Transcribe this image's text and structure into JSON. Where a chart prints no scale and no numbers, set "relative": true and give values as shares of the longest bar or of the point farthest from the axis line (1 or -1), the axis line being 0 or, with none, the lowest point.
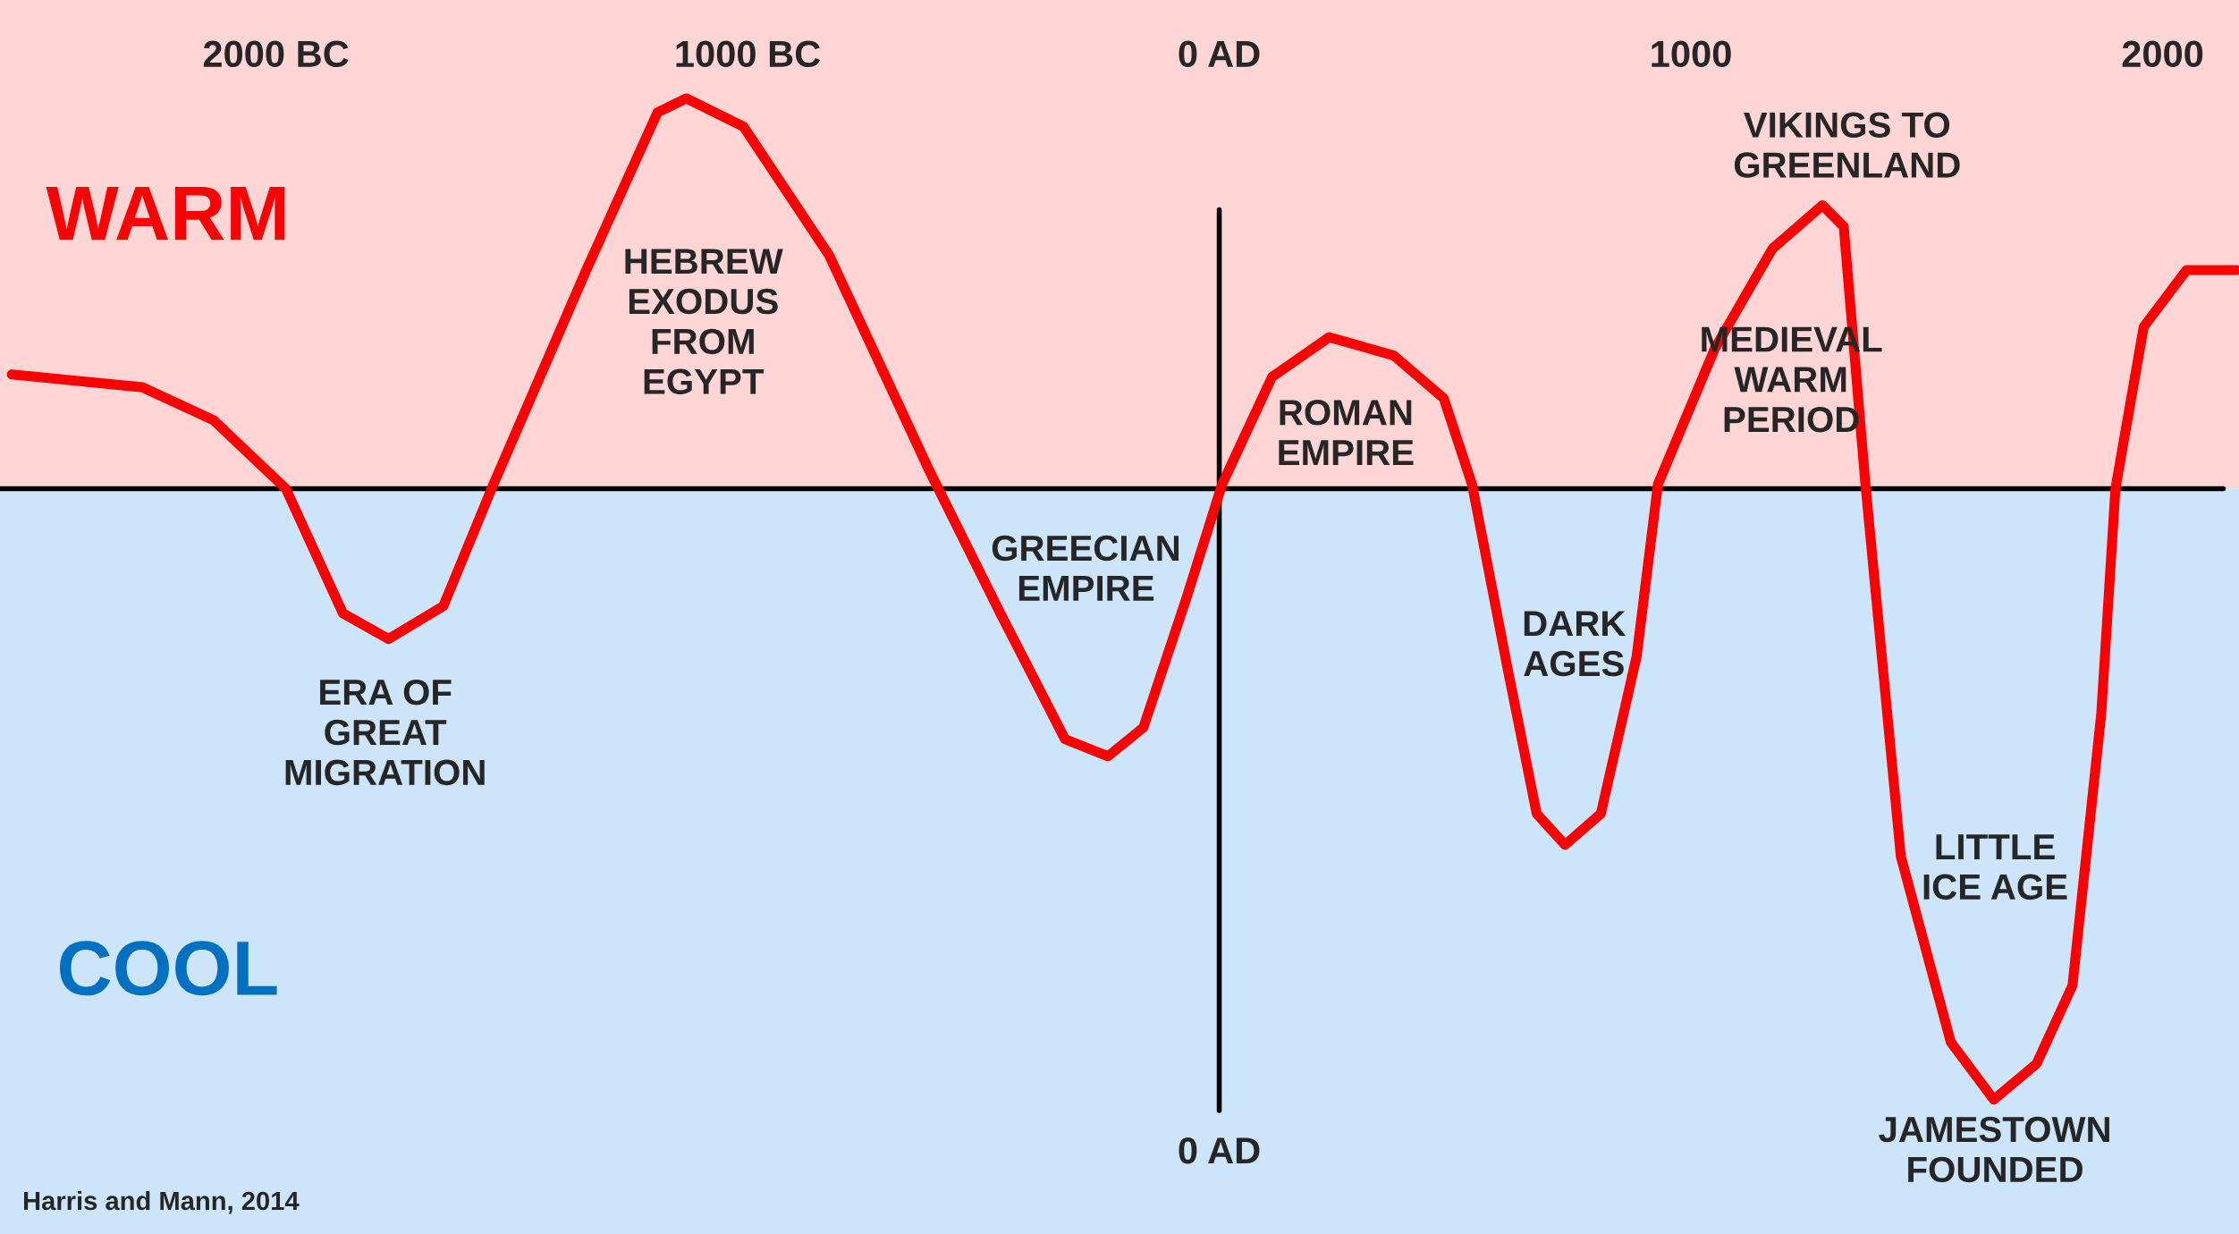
{
  "chart_data": {
    "type": "line",
    "relative": true,
    "grid": false,
    "x": [
      -2560,
      -2283,
      -2132,
      -1979,
      -1858,
      -1761,
      -1645,
      -1539,
      -1342,
      -1191,
      -1130,
      -1009,
      -827,
      -615,
      -464,
      -327,
      -236,
      -161,
      -70,
      6,
      112,
      233,
      370,
      476,
      536,
      612,
      673,
      733,
      809,
      885,
      930,
      1051,
      1173,
      1279,
      1324,
      1370,
      1445,
      1551,
      1642,
      1733,
      1809,
      1870,
      1900,
      1960,
      2051,
      2157
    ],
    "series": [
      {
        "color": "#ff0000",
        "values": [
          0.187,
          0.166,
          0.112,
          0,
          -0.204,
          -0.246,
          -0.192,
          0.007,
          0.358,
          0.616,
          0.639,
          0.593,
          0.382,
          0.03,
          -0.204,
          -0.41,
          -0.438,
          -0.391,
          -0.18,
          0.007,
          0.183,
          0.248,
          0.218,
          0.148,
          0.007,
          -0.297,
          -0.532,
          -0.583,
          -0.532,
          -0.274,
          0.007,
          0.23,
          0.393,
          0.464,
          0.429,
          0.007,
          -0.602,
          -0.906,
          -1,
          -0.941,
          -0.813,
          -0.368,
          0,
          0.265,
          0.358,
          0.358
        ]
      }
    ],
    "xlim": [
      -2585,
      2162
    ],
    "xticks": [
      {
        "value": -2000,
        "label": "2000 BC"
      },
      {
        "value": -1000,
        "label": "1000 BC"
      },
      {
        "value": 0,
        "label": "0 AD"
      },
      1000,
      2000
    ],
    "bands": [
      {
        "axis": "y",
        "from": 0,
        "to": 0.8,
        "label": "WARM",
        "color": "#ffd5d5"
      },
      {
        "axis": "y",
        "from": -1.22,
        "to": 0,
        "label": "COOL",
        "color": "#cce5fb"
      }
    ],
    "ref_lines": [
      {
        "axis": "y",
        "value": 0,
        "color": "#000000"
      },
      {
        "axis": "x",
        "value": 0,
        "label": "0 AD",
        "color": "#000000"
      }
    ],
    "annotations": [
      "ERA OF\nGREAT\nMIGRATION",
      "HEBREW\nEXODUS\nFROM\nEGYPT",
      "GREECIAN\nEMPIRE",
      "ROMAN\nEMPIRE",
      "DARK\nAGES",
      "MEDIEVAL\nWARM\nPERIOD",
      "VIKINGS TO\nGREENLAND",
      "LITTLE\nICE AGE",
      "JAMESTOWN\nFOUNDED",
      "Harris and Mann, 2014"
    ]
  }
}
